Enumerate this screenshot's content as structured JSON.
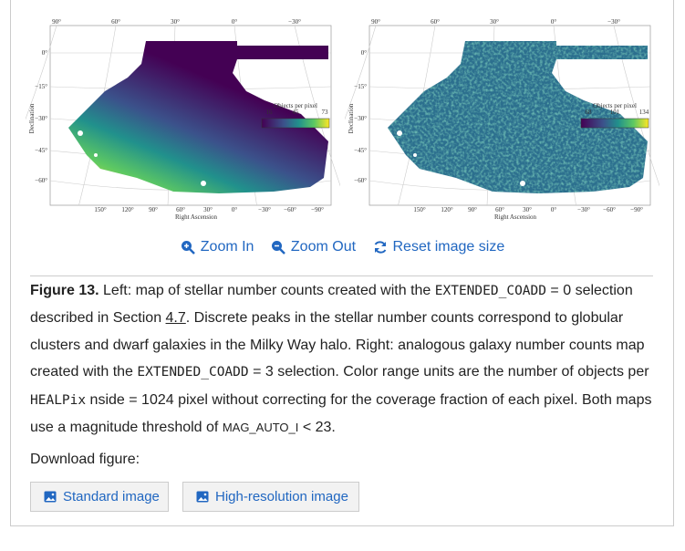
{
  "figure": {
    "maps": [
      {
        "ra_top": [
          "90°",
          "60°",
          "30°",
          "0°",
          "−30°"
        ],
        "dec": [
          "0°",
          "−15°",
          "−30°",
          "−45°",
          "−60°"
        ],
        "ra_bottom": [
          "150°",
          "120°",
          "90°",
          "60°",
          "30°",
          "0°",
          "−30°",
          "−60°",
          "−90°"
        ],
        "xlabel": "Right Ascension",
        "ylabel": "Declination",
        "colorbar_title": "Objects per pixel",
        "colorbar_ticks": [
          "16",
          "45",
          "73"
        ]
      },
      {
        "ra_top": [
          "90°",
          "60°",
          "30°",
          "0°",
          "−30°"
        ],
        "dec": [
          "0°",
          "−15°",
          "−30°",
          "−45°",
          "−60°"
        ],
        "ra_bottom": [
          "150°",
          "120°",
          "90°",
          "60°",
          "30°",
          "0°",
          "−30°",
          "−60°",
          "−90°"
        ],
        "xlabel": "Right Ascension",
        "ylabel": "Declination",
        "colorbar_title": "Objects per pixel",
        "colorbar_ticks": [
          "68",
          "101",
          "134"
        ]
      }
    ],
    "controls": [
      "Zoom In",
      "Zoom Out",
      "Reset image size"
    ],
    "caption": {
      "label": "Figure 13.",
      "parts": [
        " Left: map of stellar number counts created with the ",
        "EXTENDED_COADD",
        " = 0 selection described in Section ",
        "4.7",
        ". Discrete peaks in the stellar number counts correspond to globular clusters and dwarf galaxies in the Milky Way halo. Right: analogous galaxy number counts map created with the ",
        "EXTENDED_COADD",
        " = 3 selection. Color range units are the number of objects per ",
        "HEALPix",
        " nside = 1024 pixel without correcting for the coverage fraction of each pixel. Both maps use a magnitude threshold of ",
        "MAG_AUTO_I",
        " < 23."
      ]
    },
    "download": {
      "label": "Download figure:",
      "buttons": [
        "Standard image",
        "High-resolution image"
      ]
    }
  }
}
